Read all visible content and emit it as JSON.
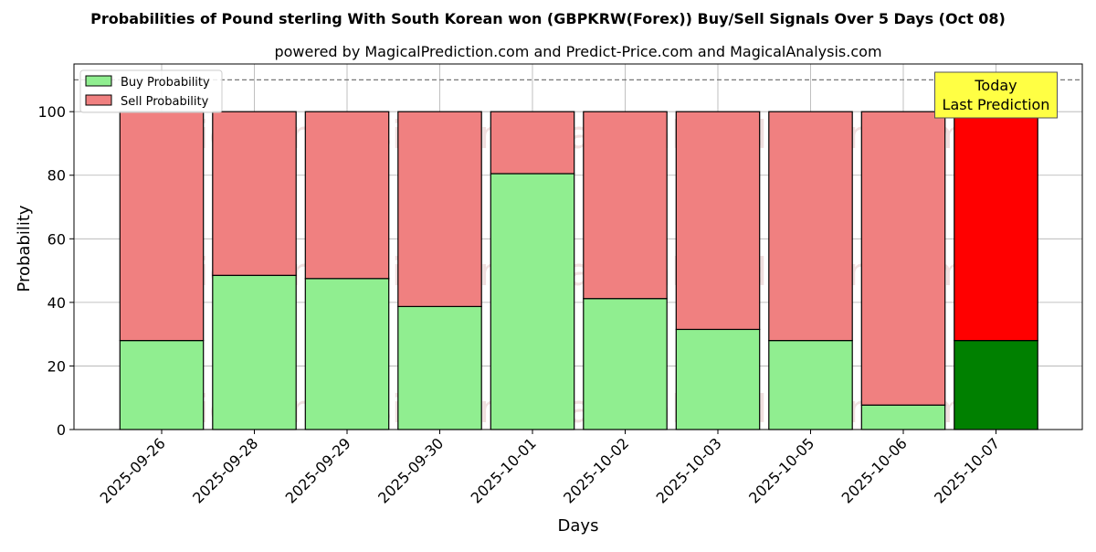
{
  "chart_data": {
    "type": "bar",
    "stacked": true,
    "title": "Probabilities of Pound sterling With South Korean won (GBPKRW(Forex)) Buy/Sell Signals Over 5 Days (Oct 08)",
    "subtitle": "powered by MagicalPrediction.com and Predict-Price.com and MagicalAnalysis.com",
    "xlabel": "Days",
    "ylabel": "Probability",
    "ylim": [
      0,
      115
    ],
    "yticks": [
      0,
      20,
      40,
      60,
      80,
      100
    ],
    "grid": true,
    "legend_position": "top-left",
    "reference_line": {
      "value": 110,
      "style": "dashed"
    },
    "categories": [
      "2025-09-26",
      "2025-09-28",
      "2025-09-29",
      "2025-09-30",
      "2025-10-01",
      "2025-10-02",
      "2025-10-03",
      "2025-10-05",
      "2025-10-06",
      "2025-10-07"
    ],
    "series": [
      {
        "name": "Buy Probability",
        "values": [
          28,
          48.5,
          47.5,
          38.7,
          80.5,
          41.2,
          31.5,
          28,
          7.7,
          28
        ]
      },
      {
        "name": "Sell Probability",
        "values": [
          72,
          51.5,
          52.5,
          61.3,
          19.5,
          58.8,
          68.5,
          72,
          92.3,
          72
        ]
      }
    ],
    "colors": {
      "buy": "#90ee90",
      "sell": "#f08080",
      "buy_highlight": "#008000",
      "sell_highlight": "#ff0000",
      "annotation_bg": "#ffff44"
    },
    "highlight_index": 9,
    "annotation": {
      "lines": [
        "Today",
        "Last Prediction"
      ]
    },
    "watermarks": [
      "MagicalAnalysis.com",
      "MagicalPrediction.com"
    ]
  }
}
